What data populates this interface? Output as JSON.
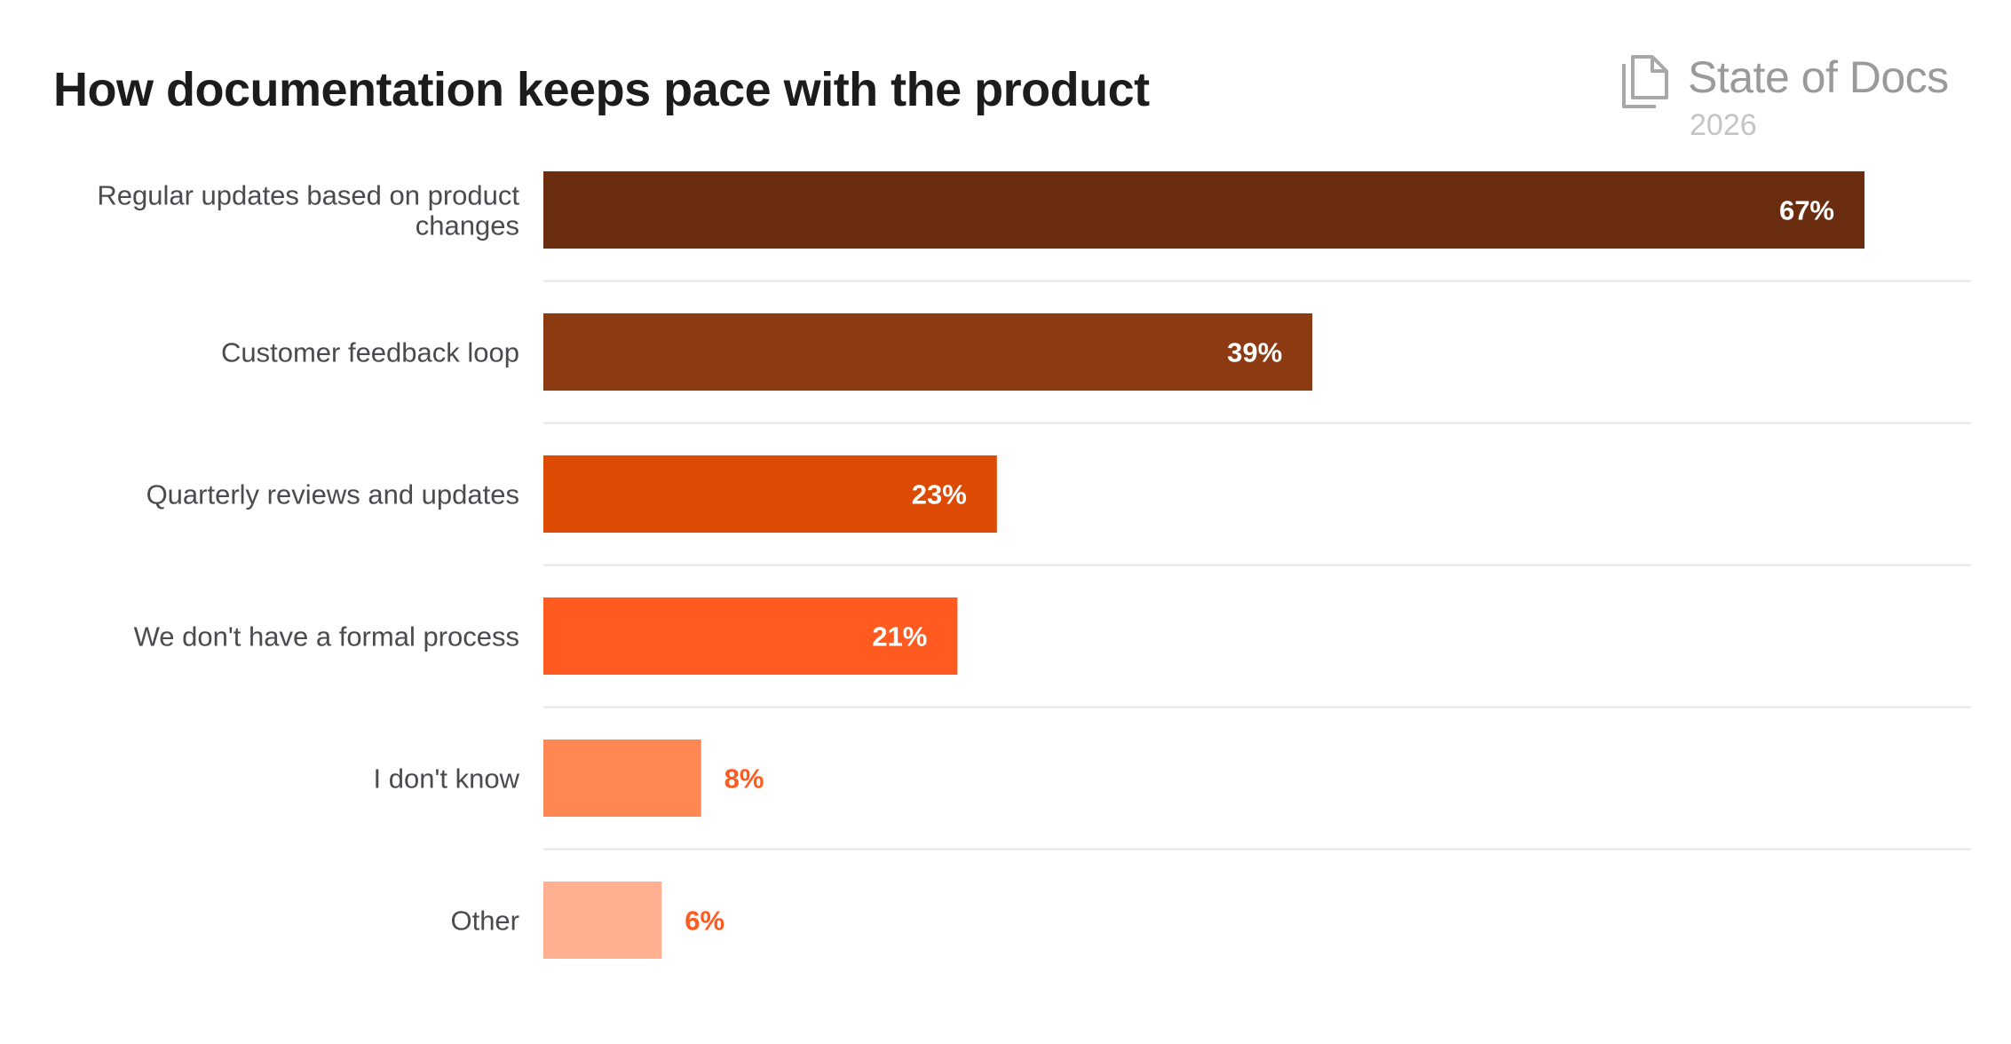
{
  "chart_data": {
    "type": "bar",
    "orientation": "horizontal",
    "title": "How documentation keeps pace with the product",
    "categories": [
      [
        "Regular updates based on product",
        "changes"
      ],
      [
        "Customer feedback loop"
      ],
      [
        "Quarterly reviews and updates"
      ],
      [
        "We don't have a formal process"
      ],
      [
        "I don't know"
      ],
      [
        "Other"
      ]
    ],
    "values": [
      67,
      39,
      23,
      21,
      8,
      6
    ],
    "value_suffix": "%",
    "bar_colors": [
      "#6b2d10",
      "#8c3a12",
      "#dc4a04",
      "#ff5a1f",
      "#ff8754",
      "#ffb090"
    ],
    "label_inside_color": "#ffffff",
    "label_outside_color": "#ff5a1f",
    "gridline_color": "#e6e6e6",
    "xlim": [
      0,
      72
    ]
  },
  "brand": {
    "name": "State of Docs",
    "year": "2026",
    "icon": "stacked-documents-icon",
    "color": "#9a9a9a"
  }
}
